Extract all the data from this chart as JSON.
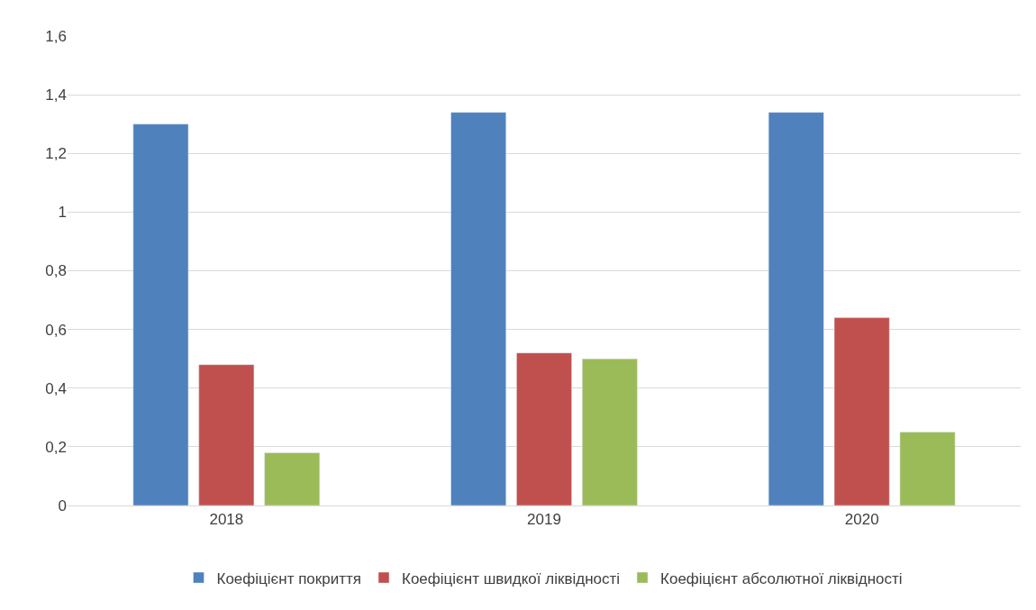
{
  "chart_data": {
    "type": "bar",
    "categories": [
      "2018",
      "2019",
      "2020"
    ],
    "series": [
      {
        "name": "Коефіцієнт покриття",
        "color": "#4f81bd",
        "values": [
          1.3,
          1.34,
          1.34
        ]
      },
      {
        "name": "Коефіцієнт швидкої ліквідності",
        "color": "#c0504d",
        "values": [
          0.48,
          0.52,
          0.64
        ]
      },
      {
        "name": "Коефіцієнт абсолютної ліквідності",
        "color": "#9bbb59",
        "values": [
          0.18,
          0.5,
          0.25
        ]
      }
    ],
    "ylim": [
      0,
      1.6
    ],
    "yticks": [
      0,
      {
        "value": 0.2,
        "label": "0,2"
      },
      {
        "value": 0.4,
        "label": "0,4"
      },
      {
        "value": 0.6,
        "label": "0,6"
      },
      {
        "value": 0.8,
        "label": "0,8"
      },
      1,
      {
        "value": 1.2,
        "label": "1,2"
      },
      {
        "value": 1.4,
        "label": "1,4"
      },
      {
        "value": 1.6,
        "label": "1,6"
      }
    ],
    "grid": "y",
    "legend": "bottom"
  }
}
